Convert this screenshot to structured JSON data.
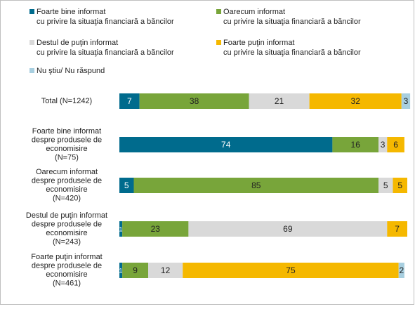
{
  "chart_data": {
    "type": "stacked-bar-horizontal",
    "categories": [
      [
        "Total (N=1242)"
      ],
      [
        "Foarte bine informat",
        "despre produsele de",
        "economisire",
        "(N=75)"
      ],
      [
        "Oarecum informat",
        "despre produsele de",
        "economisire",
        "(N=420)"
      ],
      [
        "Destul de puţin informat",
        "despre produsele de",
        "economisire",
        "(N=243)"
      ],
      [
        "Foarte puţin informat",
        "despre produsele de",
        "economisire",
        "(N=461)"
      ]
    ],
    "series": [
      {
        "name": [
          "Foarte bine informat",
          "cu privire la situaţia financiară a băncilor"
        ],
        "color": "#006b8d",
        "values": [
          7,
          74,
          5,
          1,
          1
        ]
      },
      {
        "name": [
          "Oarecum informat",
          "cu privire la situaţia financiară a băncilor"
        ],
        "color": "#78a53a",
        "values": [
          38,
          16,
          85,
          23,
          9
        ]
      },
      {
        "name": [
          "Destul de puţin informat",
          "cu privire la situaţia financiară a băncilor"
        ],
        "color": "#d9d9d9",
        "values": [
          21,
          3,
          5,
          69,
          12
        ]
      },
      {
        "name": [
          "Foarte puţin informat",
          "cu privire la situaţia financiară a băncilor"
        ],
        "color": "#f5b800",
        "values": [
          32,
          6,
          5,
          7,
          75
        ]
      },
      {
        "name": [
          "Nu ştiu/ Nu răspund"
        ],
        "color": "#a8cfe0",
        "values": [
          3,
          0,
          0,
          0,
          2
        ]
      }
    ],
    "xlim": [
      0,
      100
    ]
  }
}
